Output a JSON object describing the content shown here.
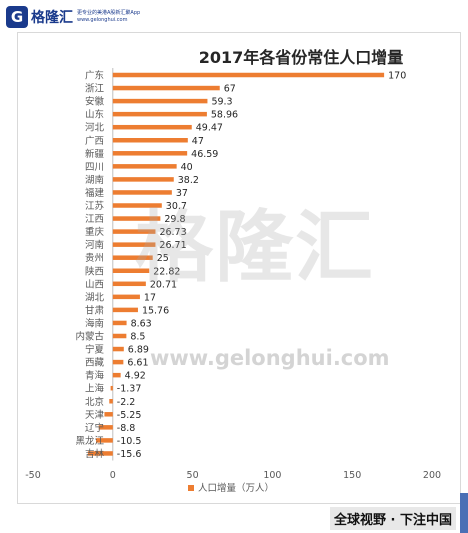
{
  "brand": {
    "logo_letter": "G",
    "name": "格隆汇",
    "slogan_line1": "更专业的美港A股新汇聚App",
    "slogan_line2": "www.gelonghui.com"
  },
  "watermark": {
    "cn": "格隆汇",
    "url": "www.gelonghui.com"
  },
  "footer": {
    "banner": "全球视野 · 下注中国"
  },
  "colors": {
    "bar": "#ED7D31",
    "axis_text": "#595959",
    "title": "#262626",
    "brand": "#1a3a8c"
  },
  "chart_data": {
    "type": "bar",
    "orientation": "horizontal",
    "title": "2017年各省份常住人口增量",
    "categories": [
      "广东",
      "浙江",
      "安徽",
      "山东",
      "河北",
      "广西",
      "新疆",
      "四川",
      "湖南",
      "福建",
      "江苏",
      "江西",
      "重庆",
      "河南",
      "贵州",
      "陕西",
      "山西",
      "湖北",
      "甘肃",
      "海南",
      "内蒙古",
      "宁夏",
      "西藏",
      "青海",
      "上海",
      "北京",
      "天津",
      "辽宁",
      "黑龙江",
      "吉林"
    ],
    "values": [
      170,
      67,
      59.3,
      58.96,
      49.47,
      47,
      46.59,
      40,
      38.2,
      37,
      30.7,
      29.8,
      26.73,
      26.71,
      25,
      22.82,
      20.71,
      17,
      15.76,
      8.63,
      8.5,
      6.89,
      6.61,
      4.92,
      -1.37,
      -2.2,
      -5.25,
      -8.8,
      -10.5,
      -15.6
    ],
    "data_labels": [
      "170",
      "67",
      "59.3",
      "58.96",
      "49.47",
      "47",
      "46.59",
      "40",
      "38.2",
      "37",
      "30.7",
      "29.8",
      "26.73",
      "26.71",
      "25",
      "22.82",
      "20.71",
      "17",
      "15.76",
      "8.63",
      "8.5",
      "6.89",
      "6.61",
      "4.92",
      "-1.37",
      "-2.2",
      "-5.25",
      "-8.8",
      "-10.5",
      "-15.6"
    ],
    "xlim": [
      -50,
      200
    ],
    "xticks": [
      -50,
      0,
      50,
      100,
      150,
      200
    ],
    "xtick_labels": [
      "-50",
      "0",
      "50",
      "100",
      "150",
      "200"
    ],
    "grid": false,
    "legend": {
      "position": "bottom",
      "label": "人口增量（万人）"
    }
  }
}
